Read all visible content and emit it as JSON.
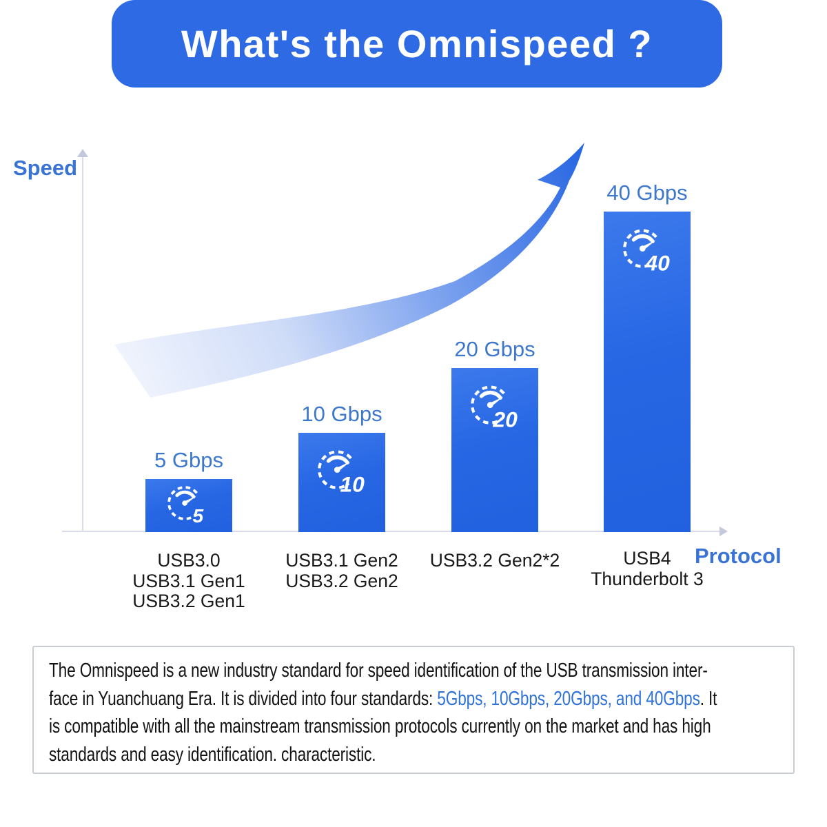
{
  "header": {
    "title": "What's the Omnispeed ?"
  },
  "chart": {
    "y_axis_label": "Speed",
    "x_axis_label": "Protocol",
    "bars": [
      {
        "value_label": "5 Gbps",
        "icon": "speedometer-icon",
        "icon_number": "5",
        "protocols": [
          "USB3.0",
          "USB3.1 Gen1",
          "USB3.2 Gen1"
        ]
      },
      {
        "value_label": "10 Gbps",
        "icon": "speedometer-icon",
        "icon_number": "10",
        "protocols": [
          "USB3.1 Gen2",
          "USB3.2 Gen2"
        ]
      },
      {
        "value_label": "20 Gbps",
        "icon": "speedometer-icon",
        "icon_number": "20",
        "protocols": [
          "USB3.2 Gen2*2"
        ]
      },
      {
        "value_label": "40 Gbps",
        "icon": "speedometer-icon",
        "icon_number": "40",
        "protocols": [
          "USB4",
          "Thunderbolt 3"
        ]
      }
    ]
  },
  "chart_data": {
    "type": "bar",
    "categories": [
      "USB3.0 / USB3.1 Gen1 / USB3.2 Gen1",
      "USB3.1 Gen2 / USB3.2 Gen2",
      "USB3.2 Gen2*2",
      "USB4 / Thunderbolt 3"
    ],
    "values": [
      5,
      10,
      20,
      40
    ],
    "unit": "Gbps",
    "bar_labels": [
      "5 Gbps",
      "10 Gbps",
      "20 Gbps",
      "40 Gbps"
    ],
    "title": "What's the Omnispeed ?",
    "xlabel": "Protocol",
    "ylabel": "Speed",
    "legend": false,
    "grid": false,
    "bar_color": "#2e6be4",
    "accent_color": "#2d6ae4",
    "annotation": "upward curved growth arrow"
  },
  "description": {
    "highlight_color": "#2f72da",
    "lines": [
      [
        {
          "text": "The Omnispeed is a new industry standard for speed identification of the USB transmission inter-"
        }
      ],
      [
        {
          "text": "face in Yuanchuang Era. It is divided into four standards: "
        },
        {
          "text": "5Gbps, 10Gbps, 20Gbps, and 40Gbps",
          "highlight": true
        },
        {
          "text": ". It"
        }
      ],
      [
        {
          "text": "is compatible with all the mainstream transmission protocols currently on the market and has high"
        }
      ],
      [
        {
          "text": "standards and easy identification. characteristic."
        }
      ]
    ]
  }
}
